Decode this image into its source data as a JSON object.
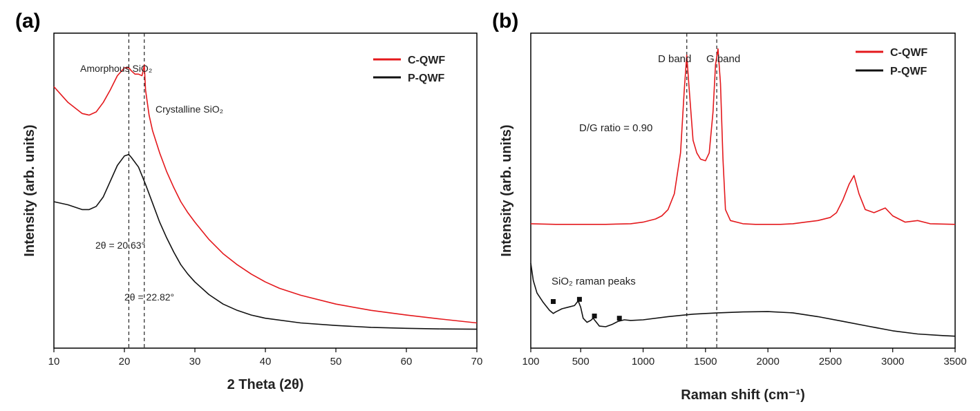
{
  "chart_data": [
    {
      "type": "line",
      "panel_label": "(a)",
      "xlabel": "2 Theta (2θ)",
      "ylabel": "Intensity (arb. units)",
      "xlim": [
        10,
        70
      ],
      "ylim": [
        0,
        1
      ],
      "xticks": [
        10,
        20,
        30,
        40,
        50,
        60,
        70
      ],
      "legend": {
        "position": "top-right"
      },
      "series": [
        {
          "name": "C-QWF",
          "color": "#e4181c",
          "x": [
            10,
            12,
            14,
            15,
            16,
            17,
            18,
            19,
            20,
            20.63,
            21,
            21.5,
            22,
            22.5,
            22.82,
            23,
            23.5,
            24,
            25,
            26,
            27,
            28,
            29,
            30,
            32,
            34,
            36,
            38,
            40,
            42,
            45,
            50,
            55,
            60,
            65,
            70
          ],
          "y": [
            0.83,
            0.78,
            0.745,
            0.74,
            0.75,
            0.78,
            0.82,
            0.865,
            0.89,
            0.89,
            0.88,
            0.87,
            0.87,
            0.865,
            0.9,
            0.82,
            0.74,
            0.69,
            0.62,
            0.56,
            0.51,
            0.465,
            0.43,
            0.4,
            0.345,
            0.3,
            0.265,
            0.235,
            0.21,
            0.19,
            0.168,
            0.14,
            0.12,
            0.105,
            0.092,
            0.08
          ]
        },
        {
          "name": "P-QWF",
          "color": "#111111",
          "x": [
            10,
            12,
            14,
            15,
            16,
            17,
            18,
            19,
            20,
            20.63,
            21,
            22,
            23,
            24,
            25,
            26,
            27,
            28,
            29,
            30,
            32,
            34,
            36,
            38,
            40,
            45,
            50,
            55,
            60,
            65,
            70
          ],
          "y": [
            0.465,
            0.455,
            0.44,
            0.44,
            0.45,
            0.48,
            0.53,
            0.58,
            0.61,
            0.615,
            0.605,
            0.575,
            0.52,
            0.46,
            0.4,
            0.35,
            0.305,
            0.265,
            0.235,
            0.21,
            0.17,
            0.14,
            0.12,
            0.105,
            0.095,
            0.08,
            0.072,
            0.066,
            0.063,
            0.061,
            0.06
          ]
        }
      ],
      "vlines": [
        20.63,
        22.82
      ],
      "annotations": [
        {
          "text": "Amorphous SiO₂"
        },
        {
          "text": "Crystalline SiO₂"
        },
        {
          "text": "2θ = 20.63°"
        },
        {
          "text": "2θ = 22.82°"
        }
      ]
    },
    {
      "type": "line",
      "panel_label": "(b)",
      "xlabel": "Raman shift (cm⁻¹)",
      "ylabel": "Intensity (arb. units)",
      "xlim": [
        100,
        3500
      ],
      "ylim": [
        0,
        1
      ],
      "xticks": [
        100,
        500,
        1000,
        1500,
        2000,
        2500,
        3000,
        3500
      ],
      "legend": {
        "position": "top-right"
      },
      "series": [
        {
          "name": "C-QWF",
          "color": "#e4181c",
          "x": [
            100,
            300,
            500,
            700,
            900,
            1000,
            1100,
            1150,
            1200,
            1250,
            1300,
            1330,
            1350,
            1370,
            1400,
            1430,
            1460,
            1500,
            1530,
            1560,
            1580,
            1600,
            1620,
            1640,
            1660,
            1700,
            1800,
            1900,
            2000,
            2100,
            2200,
            2300,
            2400,
            2500,
            2550,
            2600,
            2650,
            2690,
            2730,
            2780,
            2850,
            2940,
            3000,
            3100,
            3200,
            3300,
            3500
          ],
          "y": [
            0.395,
            0.393,
            0.393,
            0.393,
            0.395,
            0.4,
            0.41,
            0.42,
            0.44,
            0.49,
            0.62,
            0.82,
            0.93,
            0.82,
            0.66,
            0.62,
            0.6,
            0.595,
            0.62,
            0.75,
            0.9,
            0.95,
            0.84,
            0.6,
            0.44,
            0.405,
            0.395,
            0.393,
            0.393,
            0.393,
            0.395,
            0.4,
            0.405,
            0.415,
            0.43,
            0.47,
            0.52,
            0.548,
            0.49,
            0.44,
            0.43,
            0.445,
            0.42,
            0.4,
            0.405,
            0.395,
            0.393
          ]
        },
        {
          "name": "P-QWF",
          "color": "#111111",
          "x": [
            100,
            120,
            150,
            200,
            250,
            280,
            300,
            350,
            400,
            450,
            480,
            500,
            520,
            550,
            580,
            600,
            620,
            650,
            700,
            750,
            800,
            850,
            900,
            1000,
            1200,
            1400,
            1600,
            1800,
            2000,
            2200,
            2400,
            2600,
            2800,
            3000,
            3200,
            3400,
            3500
          ],
          "y": [
            0.27,
            0.215,
            0.175,
            0.145,
            0.12,
            0.11,
            0.115,
            0.125,
            0.13,
            0.135,
            0.15,
            0.13,
            0.095,
            0.082,
            0.088,
            0.095,
            0.085,
            0.07,
            0.068,
            0.075,
            0.085,
            0.09,
            0.088,
            0.09,
            0.1,
            0.108,
            0.112,
            0.115,
            0.116,
            0.112,
            0.1,
            0.085,
            0.07,
            0.055,
            0.045,
            0.04,
            0.038
          ]
        }
      ],
      "vlines": [
        1350,
        1590
      ],
      "markers": [
        {
          "x": 280,
          "y": 0.148
        },
        {
          "x": 490,
          "y": 0.155
        },
        {
          "x": 610,
          "y": 0.102
        },
        {
          "x": 810,
          "y": 0.095
        }
      ],
      "annotations": [
        {
          "text": "D band"
        },
        {
          "text": "G band"
        },
        {
          "text": "D/G ratio = 0.90"
        },
        {
          "text": "SiO₂ raman peaks"
        }
      ]
    }
  ]
}
